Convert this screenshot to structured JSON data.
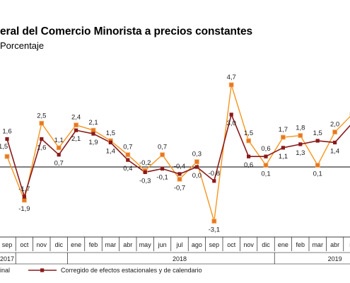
{
  "header": {
    "title": "eral del Comercio Minorista a precios constantes",
    "subtitle": "Porcentaje"
  },
  "chart_data": {
    "type": "line",
    "categories": [
      "sep",
      "oct",
      "nov",
      "dic",
      "ene",
      "feb",
      "mar",
      "abr",
      "may",
      "jun",
      "jul",
      "ago",
      "sep",
      "oct",
      "nov",
      "dic",
      "ene",
      "feb",
      "mar",
      "abr",
      "m"
    ],
    "year_labels": [
      {
        "label": "2017",
        "category_index": 0
      },
      {
        "label": "2018",
        "category_index": 10
      },
      {
        "label": "2019",
        "category_index": 19
      }
    ],
    "series": [
      {
        "name": "",
        "legend_label": "inal",
        "color": "#F7941D",
        "marker_color": "#E87722",
        "values": [
          0.6,
          -1.9,
          2.5,
          1.1,
          2.4,
          2.1,
          1.5,
          0.7,
          -0.2,
          0.7,
          -0.7,
          0.3,
          -3.1,
          4.7,
          1.5,
          0.1,
          1.7,
          1.8,
          0.1,
          2.0,
          3.0
        ],
        "labels": [
          "",
          "-1,9",
          "2,5",
          "1,1",
          "2,4",
          "2,1",
          "1,5",
          "0,7",
          "-0,2",
          "0,7",
          "-0,7",
          "0,3",
          "-3,1",
          "4,7",
          "1,5",
          "0,1",
          "1,7",
          "1,8",
          "0,1",
          "2,0",
          ""
        ]
      },
      {
        "name": "Corregido de efectos estacionales y de calendario",
        "color": "#8B1A1A",
        "marker_color": "#8B1A1A",
        "values": [
          1.6,
          -1.7,
          1.6,
          0.7,
          2.1,
          1.9,
          1.4,
          0.4,
          -0.3,
          -0.1,
          -0.4,
          0.0,
          -0.8,
          3.0,
          0.6,
          0.6,
          1.1,
          1.3,
          1.5,
          1.4,
          2.5
        ],
        "labels": [
          "1,6",
          "-1,7",
          "1,6",
          "0,7",
          "2,1",
          "1,9",
          "1,4",
          "0,4",
          "-0,3",
          "-0,1",
          "-0,4",
          "0,0",
          "-0,8",
          "3,0",
          "0,6",
          "0,6",
          "1,1",
          "1,3",
          "1,5",
          "1,4",
          ""
        ]
      }
    ],
    "edge_labels": [
      "1,5"
    ],
    "ylim": [
      -3.6,
      5.3
    ],
    "grid": false,
    "legend_position": "bottom"
  }
}
